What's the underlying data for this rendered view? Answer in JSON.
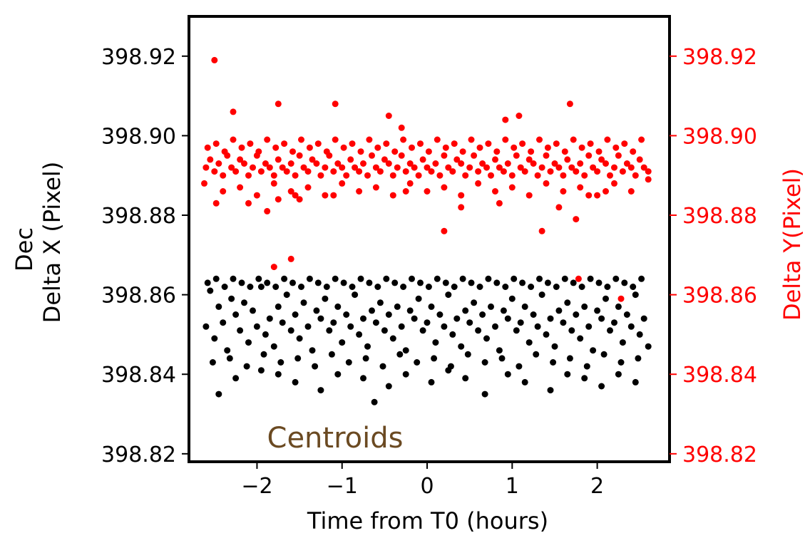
{
  "chart_data": {
    "type": "scatter",
    "xlabel": "Time from T0 (hours)",
    "ylabel_left": [
      "Dec",
      "Delta X (Pixel)"
    ],
    "ylabel_right": "Delta Y(Pixel)",
    "annotation": "Centroids",
    "xlim": [
      -2.8,
      2.85
    ],
    "ylim": [
      398.818,
      398.93
    ],
    "y2lim": [
      398.818,
      398.93
    ],
    "x_ticks": [
      {
        "value": -2,
        "label": "−2"
      },
      {
        "value": -1,
        "label": "−1"
      },
      {
        "value": 0,
        "label": "0"
      },
      {
        "value": 1,
        "label": "1"
      },
      {
        "value": 2,
        "label": "2"
      }
    ],
    "y_ticks": [
      {
        "value": 398.82,
        "label": "398.82"
      },
      {
        "value": 398.84,
        "label": "398.84"
      },
      {
        "value": 398.86,
        "label": "398.86"
      },
      {
        "value": 398.88,
        "label": "398.88"
      },
      {
        "value": 398.9,
        "label": "398.90"
      },
      {
        "value": 398.92,
        "label": "398.92"
      }
    ],
    "y2_ticks": [
      {
        "value": 398.82,
        "label": "398.82"
      },
      {
        "value": 398.84,
        "label": "398.84"
      },
      {
        "value": 398.86,
        "label": "398.86"
      },
      {
        "value": 398.88,
        "label": "398.88"
      },
      {
        "value": 398.9,
        "label": "398.90"
      },
      {
        "value": 398.92,
        "label": "398.92"
      }
    ],
    "grid": false,
    "series": [
      {
        "color": "#000000",
        "axis": "left",
        "x": [
          -2.6,
          -2.55,
          -2.5,
          -2.45,
          -2.4,
          -2.35,
          -2.3,
          -2.25,
          -2.2,
          -2.15,
          -2.1,
          -2.05,
          -2.0,
          -1.95,
          -1.9,
          -1.85,
          -1.8,
          -1.75,
          -1.7,
          -1.65,
          -1.6,
          -1.55,
          -1.5,
          -1.45,
          -1.4,
          -1.35,
          -1.3,
          -1.25,
          -1.2,
          -1.15,
          -1.1,
          -1.05,
          -1.0,
          -0.95,
          -0.9,
          -0.85,
          -0.8,
          -0.75,
          -0.7,
          -0.65,
          -0.6,
          -0.55,
          -0.5,
          -0.45,
          -0.4,
          -0.35,
          -0.3,
          -0.25,
          -0.2,
          -0.15,
          -0.1,
          -0.05,
          0.0,
          0.05,
          0.1,
          0.15,
          0.2,
          0.25,
          0.3,
          0.35,
          0.4,
          0.45,
          0.5,
          0.55,
          0.6,
          0.65,
          0.7,
          0.75,
          0.8,
          0.85,
          0.9,
          0.95,
          1.0,
          1.05,
          1.1,
          1.15,
          1.2,
          1.25,
          1.3,
          1.35,
          1.4,
          1.45,
          1.5,
          1.55,
          1.6,
          1.65,
          1.7,
          1.75,
          1.8,
          1.85,
          1.9,
          1.95,
          2.0,
          2.05,
          2.1,
          2.15,
          2.2,
          2.25,
          2.3,
          2.35,
          2.4,
          2.45,
          2.5,
          2.55,
          2.6,
          -2.58,
          -2.48,
          -2.38,
          -2.28,
          -2.18,
          -2.08,
          -1.98,
          -1.88,
          -1.78,
          -1.68,
          -1.58,
          -1.48,
          -1.38,
          -1.28,
          -1.18,
          -1.08,
          -0.98,
          -0.88,
          -0.78,
          -0.68,
          -0.58,
          -0.48,
          -0.38,
          -0.28,
          -0.18,
          -0.08,
          0.02,
          0.12,
          0.22,
          0.32,
          0.42,
          0.52,
          0.62,
          0.72,
          0.82,
          0.92,
          1.02,
          1.12,
          1.22,
          1.32,
          1.42,
          1.52,
          1.62,
          1.72,
          1.82,
          1.92,
          2.02,
          2.12,
          2.22,
          2.32,
          2.42,
          2.52,
          -2.45,
          -2.25,
          -1.95,
          -1.75,
          -1.55,
          -1.25,
          -1.05,
          -0.75,
          -0.62,
          -0.45,
          -0.25,
          0.05,
          0.25,
          0.45,
          0.68,
          0.95,
          1.15,
          1.45,
          1.65,
          1.85,
          2.05,
          2.25,
          2.45,
          -2.52,
          -2.32,
          -2.12,
          -1.92,
          -1.72,
          -1.52,
          -1.32,
          -1.12,
          -0.92,
          -0.72,
          -0.52,
          -0.32,
          -0.12,
          0.08,
          0.28,
          0.48,
          0.68,
          0.88,
          1.08,
          1.28,
          1.48,
          1.68,
          1.88,
          2.08,
          2.28,
          2.48
        ],
        "y": [
          398.852,
          398.861,
          398.849,
          398.857,
          398.853,
          398.846,
          398.859,
          398.855,
          398.851,
          398.858,
          398.848,
          398.856,
          398.852,
          398.862,
          398.85,
          398.854,
          398.847,
          398.857,
          398.853,
          398.86,
          398.851,
          398.855,
          398.849,
          398.858,
          398.852,
          398.846,
          398.856,
          398.854,
          398.859,
          398.851,
          398.853,
          398.857,
          398.848,
          398.855,
          398.852,
          398.86,
          398.85,
          398.854,
          398.847,
          398.856,
          398.853,
          398.858,
          398.851,
          398.855,
          398.849,
          398.857,
          398.852,
          398.846,
          398.856,
          398.854,
          398.859,
          398.851,
          398.853,
          398.857,
          398.848,
          398.855,
          398.852,
          398.86,
          398.85,
          398.854,
          398.847,
          398.856,
          398.853,
          398.858,
          398.851,
          398.855,
          398.849,
          398.857,
          398.852,
          398.846,
          398.856,
          398.854,
          398.859,
          398.851,
          398.853,
          398.857,
          398.848,
          398.855,
          398.852,
          398.86,
          398.85,
          398.854,
          398.847,
          398.856,
          398.853,
          398.858,
          398.851,
          398.855,
          398.849,
          398.857,
          398.852,
          398.846,
          398.856,
          398.854,
          398.859,
          398.851,
          398.853,
          398.857,
          398.848,
          398.855,
          398.852,
          398.86,
          398.85,
          398.854,
          398.847,
          398.863,
          398.864,
          398.862,
          398.864,
          398.863,
          398.862,
          398.864,
          398.863,
          398.862,
          398.864,
          398.863,
          398.862,
          398.864,
          398.863,
          398.862,
          398.864,
          398.863,
          398.862,
          398.864,
          398.863,
          398.862,
          398.864,
          398.863,
          398.862,
          398.864,
          398.863,
          398.862,
          398.864,
          398.863,
          398.862,
          398.864,
          398.863,
          398.862,
          398.864,
          398.863,
          398.862,
          398.864,
          398.863,
          398.862,
          398.864,
          398.863,
          398.862,
          398.864,
          398.863,
          398.862,
          398.864,
          398.863,
          398.862,
          398.864,
          398.863,
          398.862,
          398.864,
          398.835,
          398.839,
          398.841,
          398.84,
          398.838,
          398.836,
          398.84,
          398.839,
          398.833,
          398.837,
          398.84,
          398.838,
          398.841,
          398.839,
          398.835,
          398.84,
          398.838,
          398.836,
          398.84,
          398.839,
          398.837,
          398.84,
          398.838,
          398.843,
          398.844,
          398.842,
          398.845,
          398.843,
          398.844,
          398.842,
          398.845,
          398.843,
          398.844,
          398.842,
          398.845,
          398.843,
          398.844,
          398.842,
          398.845,
          398.843,
          398.844,
          398.842,
          398.845,
          398.843,
          398.844,
          398.842,
          398.845,
          398.843,
          398.844
        ]
      },
      {
        "color": "#ff0000",
        "axis": "right",
        "x": [
          -2.6,
          -2.55,
          -2.5,
          -2.45,
          -2.4,
          -2.35,
          -2.3,
          -2.25,
          -2.2,
          -2.15,
          -2.1,
          -2.05,
          -2.0,
          -1.95,
          -1.9,
          -1.85,
          -1.8,
          -1.75,
          -1.7,
          -1.65,
          -1.6,
          -1.55,
          -1.5,
          -1.45,
          -1.4,
          -1.35,
          -1.3,
          -1.25,
          -1.2,
          -1.15,
          -1.1,
          -1.05,
          -1.0,
          -0.95,
          -0.9,
          -0.85,
          -0.8,
          -0.75,
          -0.7,
          -0.65,
          -0.6,
          -0.55,
          -0.5,
          -0.45,
          -0.4,
          -0.35,
          -0.3,
          -0.25,
          -0.2,
          -0.15,
          -0.1,
          -0.05,
          0.0,
          0.05,
          0.1,
          0.15,
          0.2,
          0.25,
          0.3,
          0.35,
          0.4,
          0.45,
          0.5,
          0.55,
          0.6,
          0.65,
          0.7,
          0.75,
          0.8,
          0.85,
          0.9,
          0.95,
          1.0,
          1.05,
          1.1,
          1.15,
          1.2,
          1.25,
          1.3,
          1.35,
          1.4,
          1.45,
          1.5,
          1.55,
          1.6,
          1.65,
          1.7,
          1.75,
          1.8,
          1.85,
          1.9,
          1.95,
          2.0,
          2.05,
          2.1,
          2.15,
          2.2,
          2.25,
          2.3,
          2.35,
          2.4,
          2.45,
          2.5,
          2.55,
          2.6,
          -2.58,
          -2.48,
          -2.38,
          -2.28,
          -2.18,
          -2.08,
          -1.98,
          -1.88,
          -1.78,
          -1.68,
          -1.58,
          -1.48,
          -1.38,
          -1.28,
          -1.18,
          -1.08,
          -0.98,
          -0.88,
          -0.78,
          -0.68,
          -0.58,
          -0.48,
          -0.38,
          -0.28,
          -0.18,
          -0.08,
          0.02,
          0.12,
          0.22,
          0.32,
          0.42,
          0.52,
          0.62,
          0.72,
          0.82,
          0.92,
          1.02,
          1.12,
          1.22,
          1.32,
          1.42,
          1.52,
          1.62,
          1.72,
          1.82,
          1.92,
          2.02,
          2.12,
          2.22,
          2.32,
          2.42,
          2.52,
          -2.5,
          -2.28,
          -1.75,
          -1.08,
          -0.45,
          -0.3,
          0.92,
          1.08,
          1.68,
          -2.48,
          -2.1,
          -1.88,
          -1.75,
          -1.55,
          -1.5,
          -1.1,
          -0.25,
          0.2,
          0.4,
          0.85,
          1.35,
          1.55,
          1.75,
          1.9,
          2.1,
          -1.8,
          -1.6,
          1.78,
          2.28,
          -2.62,
          -2.4,
          -2.2,
          -2.0,
          -1.8,
          -1.6,
          -1.4,
          -1.2,
          -1.0,
          -0.8,
          -0.6,
          -0.4,
          -0.2,
          0.0,
          0.2,
          0.4,
          0.6,
          0.8,
          1.0,
          1.2,
          1.4,
          1.6,
          1.8,
          2.0,
          2.2,
          2.4,
          2.6
        ],
        "y": [
          398.892,
          398.894,
          398.891,
          398.893,
          398.89,
          398.895,
          398.892,
          398.891,
          398.894,
          398.893,
          398.89,
          398.892,
          398.895,
          398.891,
          398.893,
          398.892,
          398.89,
          398.894,
          398.892,
          398.891,
          398.893,
          398.89,
          398.895,
          398.892,
          398.891,
          398.894,
          398.893,
          398.89,
          398.892,
          398.895,
          398.891,
          398.893,
          398.892,
          398.89,
          398.894,
          398.892,
          398.891,
          398.893,
          398.89,
          398.895,
          398.892,
          398.891,
          398.894,
          398.893,
          398.89,
          398.892,
          398.895,
          398.891,
          398.893,
          398.892,
          398.89,
          398.894,
          398.892,
          398.891,
          398.893,
          398.89,
          398.895,
          398.892,
          398.891,
          398.894,
          398.893,
          398.89,
          398.892,
          398.895,
          398.891,
          398.893,
          398.892,
          398.89,
          398.894,
          398.892,
          398.891,
          398.893,
          398.89,
          398.895,
          398.892,
          398.891,
          398.894,
          398.893,
          398.89,
          398.892,
          398.895,
          398.891,
          398.893,
          398.892,
          398.89,
          398.894,
          398.892,
          398.891,
          398.893,
          398.89,
          398.895,
          398.892,
          398.891,
          398.894,
          398.893,
          398.89,
          398.892,
          398.895,
          398.891,
          398.893,
          398.892,
          398.89,
          398.894,
          398.892,
          398.891,
          398.897,
          398.898,
          398.896,
          398.899,
          398.897,
          398.898,
          398.896,
          398.899,
          398.897,
          398.898,
          398.896,
          398.899,
          398.897,
          398.898,
          398.896,
          398.899,
          398.897,
          398.898,
          398.896,
          398.899,
          398.897,
          398.898,
          398.896,
          398.899,
          398.897,
          398.898,
          398.896,
          398.899,
          398.897,
          398.898,
          398.896,
          398.899,
          398.897,
          398.898,
          398.896,
          398.899,
          398.897,
          398.898,
          398.896,
          398.899,
          398.897,
          398.898,
          398.896,
          398.899,
          398.897,
          398.898,
          398.896,
          398.899,
          398.897,
          398.898,
          398.896,
          398.899,
          398.919,
          398.906,
          398.908,
          398.908,
          398.905,
          398.902,
          398.904,
          398.905,
          398.908,
          398.883,
          398.883,
          398.881,
          398.884,
          398.885,
          398.884,
          398.885,
          398.886,
          398.876,
          398.882,
          398.883,
          398.876,
          398.882,
          398.879,
          398.885,
          398.886,
          398.867,
          398.869,
          398.864,
          398.859,
          398.888,
          398.886,
          398.887,
          398.885,
          398.888,
          398.886,
          398.887,
          398.885,
          398.888,
          398.886,
          398.887,
          398.885,
          398.888,
          398.886,
          398.887,
          398.885,
          398.888,
          398.886,
          398.887,
          398.885,
          398.888,
          398.886,
          398.887,
          398.885,
          398.888,
          398.886,
          398.889
        ]
      }
    ]
  }
}
